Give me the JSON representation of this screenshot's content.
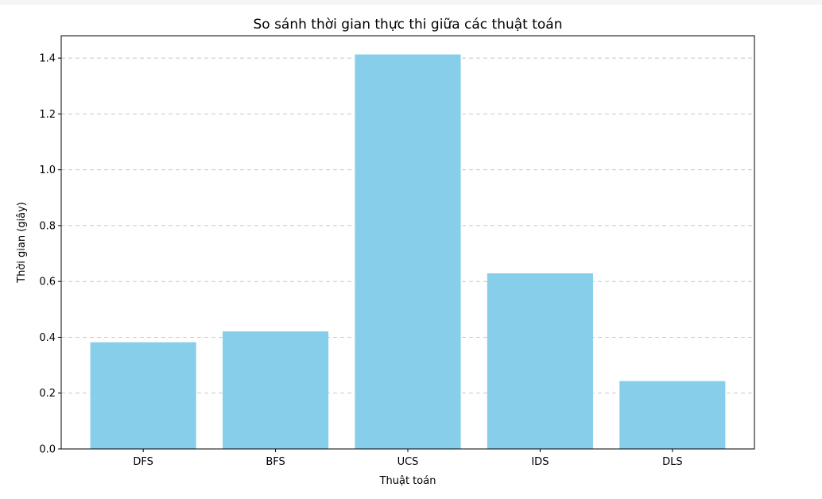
{
  "chart_data": {
    "type": "bar",
    "title": "So sánh thời gian thực thi giữa các thuật toán",
    "xlabel": "Thuật toán",
    "ylabel": "Thời gian (giây)",
    "categories": [
      "DFS",
      "BFS",
      "UCS",
      "IDS",
      "DLS"
    ],
    "values": [
      0.382,
      0.421,
      1.413,
      0.629,
      0.243
    ],
    "ylim": [
      0,
      1.48
    ],
    "yticks": [
      "0.0",
      "0.2",
      "0.4",
      "0.6",
      "0.8",
      "1.0",
      "1.2",
      "1.4"
    ],
    "bar_color": "#87CEEB",
    "grid": "y-dashed",
    "legend": "none"
  }
}
